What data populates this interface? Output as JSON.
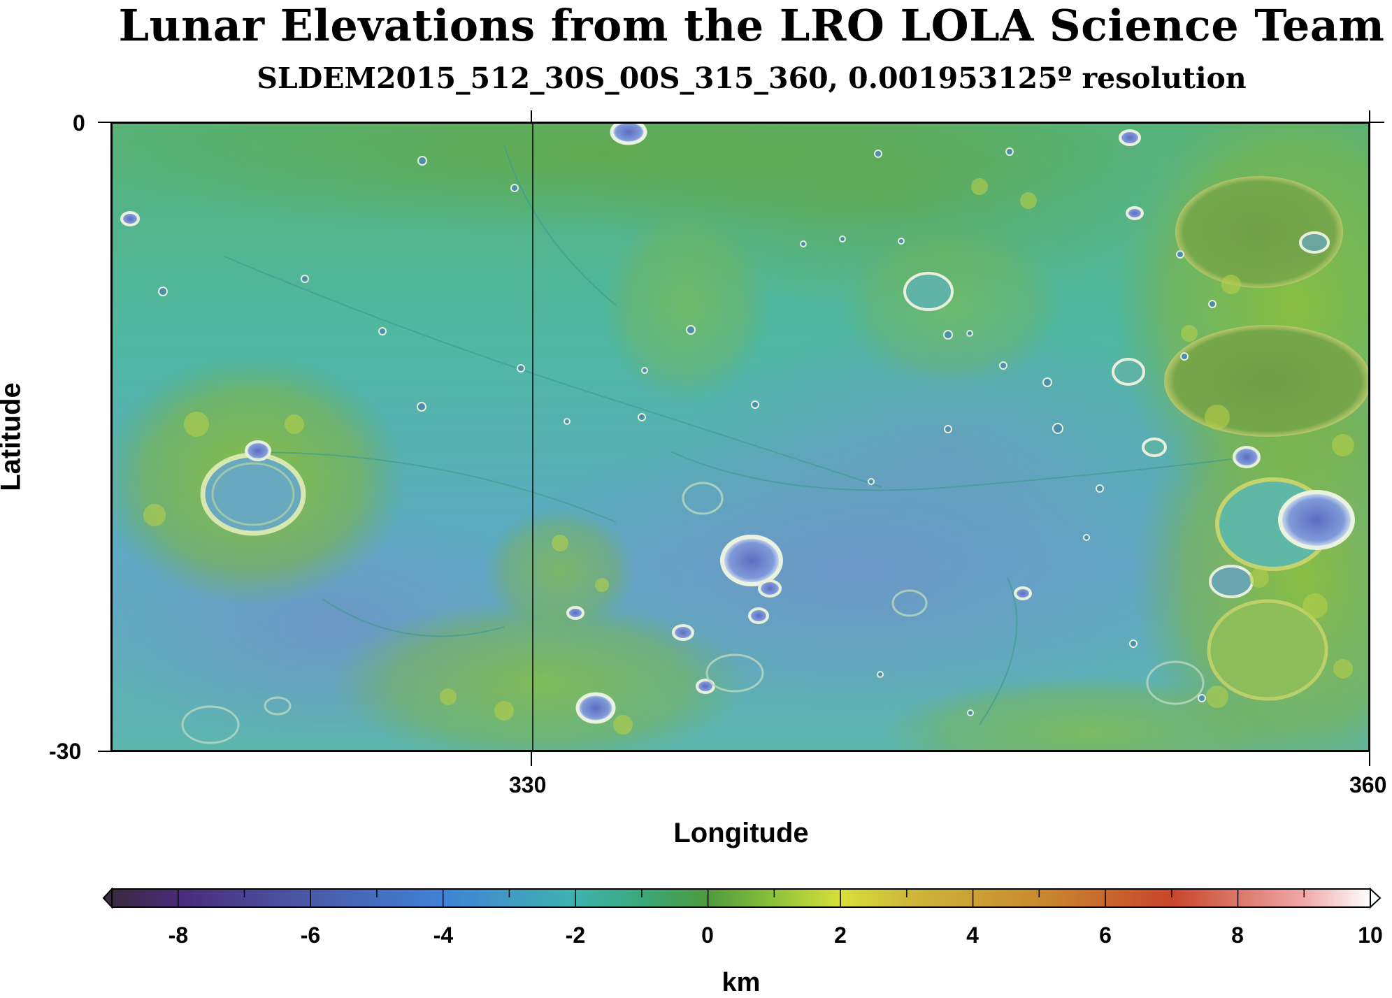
{
  "title": "Lunar Elevations from the LRO LOLA Science Team",
  "subtitle": "SLDEM2015_512_30S_00S_315_360, 0.001953125º resolution",
  "map": {
    "x_axis": {
      "title": "Longitude",
      "range": [
        315,
        360
      ],
      "tick_labels": [
        "330",
        "360"
      ]
    },
    "y_axis": {
      "title": "Latitude",
      "range": [
        -30,
        0
      ],
      "tick_labels": [
        "0",
        "-30"
      ]
    },
    "gridline_longitude": "330"
  },
  "colorbar": {
    "unit": "km",
    "range": [
      -9,
      10
    ],
    "tick_labels": [
      "-8",
      "-6",
      "-4",
      "-2",
      "0",
      "2",
      "4",
      "6",
      "8",
      "10"
    ],
    "colors": {
      "m9": "#3a2a3f",
      "m8": "#4a2a7a",
      "m6": "#4a5aa8",
      "m4": "#3f82d6",
      "m2": "#3fb3b0",
      "m1": "#3aa87a",
      "z0": "#4e9a3d",
      "p1": "#8cc23a",
      "p2": "#d8e03a",
      "p3": "#cdb93a",
      "p5": "#c98a2e",
      "p7": "#c8452a",
      "p9": "#f0a8a8",
      "p10": "#ffffff"
    }
  },
  "colors": {
    "mare_low": "#6c9bc8",
    "mare_mid": "#52b7b0",
    "plains": "#4fb69b",
    "highland": "#8cc23a",
    "high_peak": "#c2c84a"
  }
}
